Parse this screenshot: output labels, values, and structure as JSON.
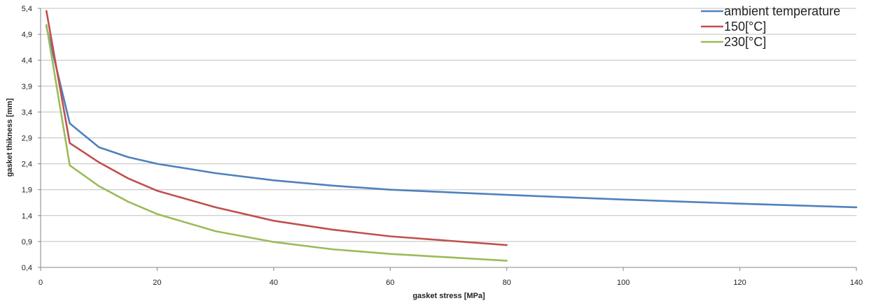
{
  "chart_data": {
    "type": "line",
    "title": "",
    "xlabel": "gasket stress [MPa]",
    "ylabel": "gasket thikness [mm]",
    "xlim": [
      0,
      140
    ],
    "ylim": [
      0.4,
      5.4
    ],
    "x_ticks": [
      0,
      20,
      40,
      60,
      80,
      100,
      120,
      140
    ],
    "x_tick_labels": [
      "0",
      "20",
      "40",
      "60",
      "80",
      "100",
      "120",
      "140"
    ],
    "y_ticks": [
      0.4,
      0.9,
      1.4,
      1.9,
      2.4,
      2.9,
      3.4,
      3.9,
      4.4,
      4.9,
      5.4
    ],
    "y_tick_labels": [
      "0,4",
      "0,9",
      "1,4",
      "1,9",
      "2,4",
      "2,9",
      "3,4",
      "3,9",
      "4,4",
      "4,9",
      "5,4"
    ],
    "grid": "horizontal",
    "legend_position": "top-right",
    "series": [
      {
        "name": "ambient temperature",
        "color": "#4f81bd",
        "x": [
          1,
          5,
          10,
          15,
          20,
          30,
          40,
          50,
          60,
          80,
          100,
          120,
          140
        ],
        "y": [
          5.05,
          3.18,
          2.72,
          2.53,
          2.4,
          2.22,
          2.08,
          1.98,
          1.9,
          1.8,
          1.71,
          1.63,
          1.56
        ]
      },
      {
        "name": "150[°C]",
        "color": "#c0504d",
        "x": [
          1,
          5,
          10,
          15,
          20,
          30,
          40,
          50,
          60,
          80
        ],
        "y": [
          5.35,
          2.8,
          2.43,
          2.12,
          1.88,
          1.56,
          1.3,
          1.13,
          1.0,
          0.83
        ]
      },
      {
        "name": "230[°C]",
        "color": "#9bbb59",
        "x": [
          1,
          5,
          10,
          15,
          20,
          30,
          40,
          50,
          60,
          80
        ],
        "y": [
          5.08,
          2.37,
          1.97,
          1.67,
          1.43,
          1.1,
          0.89,
          0.75,
          0.66,
          0.53
        ]
      }
    ]
  }
}
